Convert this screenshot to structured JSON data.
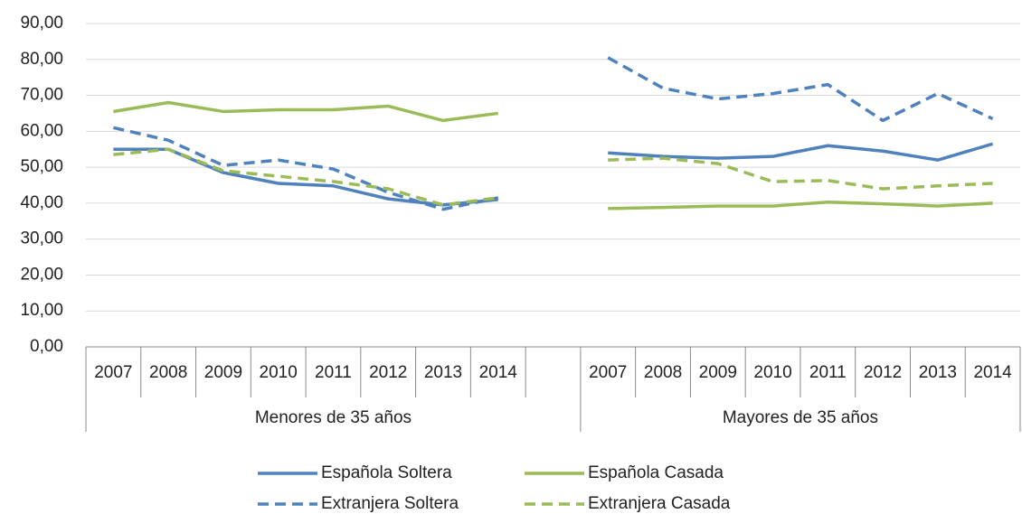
{
  "chart_data": {
    "type": "line",
    "categories": [
      "2007",
      "2008",
      "2009",
      "2010",
      "2011",
      "2012",
      "2013",
      "2014",
      null,
      "2007",
      "2008",
      "2009",
      "2010",
      "2011",
      "2012",
      "2013",
      "2014"
    ],
    "groups": [
      "Menores de 35 años",
      "Mayores de 35 años"
    ],
    "series": [
      {
        "name": "Española Soltera",
        "color": "#4f81bd",
        "dashed": false,
        "values": [
          55,
          55,
          48.5,
          45.5,
          44.8,
          41.2,
          39.5,
          41,
          null,
          54,
          53,
          52.5,
          53,
          56,
          54.5,
          52,
          56.5
        ]
      },
      {
        "name": "Española Casada",
        "color": "#9bbb59",
        "dashed": false,
        "values": [
          65.5,
          68,
          65.5,
          66,
          66,
          67,
          63,
          65,
          null,
          38.5,
          38.8,
          39.2,
          39.2,
          40.3,
          39.8,
          39.2,
          40
        ]
      },
      {
        "name": "Extranjera Soltera",
        "color": "#4f81bd",
        "dashed": true,
        "values": [
          61,
          57.5,
          50.5,
          52,
          49.5,
          43,
          38.3,
          41.5,
          null,
          80.5,
          72,
          69,
          70.5,
          73,
          63,
          70.5,
          63.5
        ]
      },
      {
        "name": "Extranjera Casada",
        "color": "#9bbb59",
        "dashed": true,
        "values": [
          53.5,
          55,
          49,
          47.5,
          46,
          44,
          39.5,
          41.5,
          null,
          52,
          52.5,
          51,
          46,
          46.3,
          44,
          44.8,
          45.5
        ]
      }
    ],
    "ylim": [
      0,
      90
    ],
    "yticks": [
      {
        "value": 0,
        "label": "0,00"
      },
      {
        "value": 10,
        "label": "10,00"
      },
      {
        "value": 20,
        "label": "20,00"
      },
      {
        "value": 30,
        "label": "30,00"
      },
      {
        "value": 40,
        "label": "40,00"
      },
      {
        "value": 50,
        "label": "50,00"
      },
      {
        "value": 60,
        "label": "60,00"
      },
      {
        "value": 70,
        "label": "70,00"
      },
      {
        "value": 80,
        "label": "80,00"
      },
      {
        "value": 90,
        "label": "90,00"
      }
    ],
    "grid": true
  }
}
